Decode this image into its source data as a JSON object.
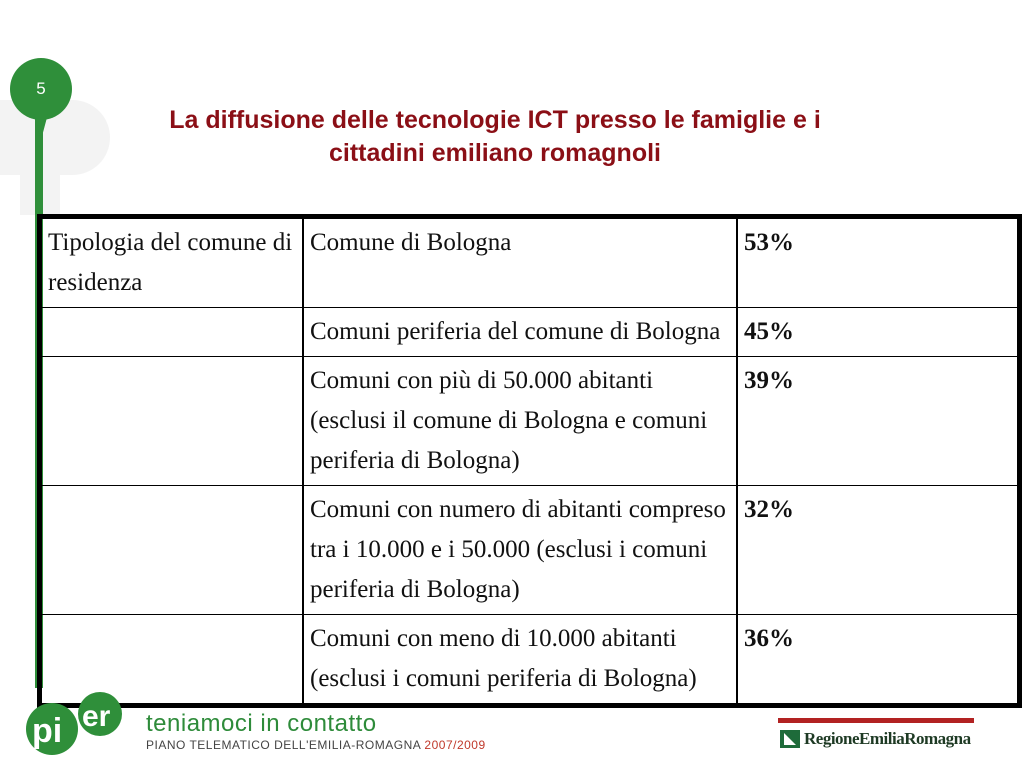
{
  "slide": {
    "number": "5",
    "title_line1": "La diffusione delle tecnologie ICT presso le famiglie e i",
    "title_line2": "cittadini emiliano romagnoli"
  },
  "table": {
    "header_label": "Tipologia del comune di residenza",
    "rows": [
      {
        "category": "Comune di Bologna",
        "value": "53%"
      },
      {
        "category": "Comuni periferia del comune di Bologna",
        "value": "45%"
      },
      {
        "category": "Comuni con più di 50.000 abitanti (esclusi il comune di Bologna e comuni periferia di Bologna)",
        "value": "39%"
      },
      {
        "category": "Comuni con numero di abitanti compreso tra i 10.000 e i 50.000 (esclusi i comuni periferia di Bologna)",
        "value": "32%"
      },
      {
        "category": "Comuni con meno di 10.000 abitanti (esclusi i comuni periferia di Bologna)",
        "value": "36%"
      }
    ]
  },
  "footer": {
    "logo_text": "pi-er",
    "tagline": "teniamoci in contatto",
    "subline": "PIANO TELEMATICO DELL'EMILIA-ROMAGNA",
    "years": "2007/2009",
    "region_name": "RegioneEmiliaRomagna"
  },
  "colors": {
    "title": "#8b0f16",
    "brand_green": "#2f8f3a",
    "region_red": "#b22222"
  }
}
